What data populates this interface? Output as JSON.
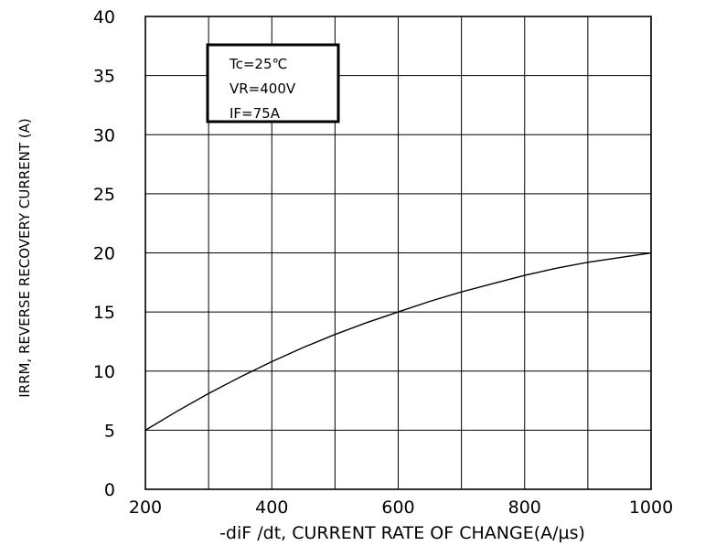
{
  "chart_data": {
    "type": "line",
    "xlabel": "-diF /dt, CURRENT RATE OF CHANGE(A/µs)",
    "ylabel": "IRRM, REVERSE RECOVERY CURRENT (A)",
    "xlim": [
      200,
      1000
    ],
    "ylim": [
      0,
      40
    ],
    "x_ticks": [
      "200",
      "400",
      "600",
      "800",
      "1000"
    ],
    "y_ticks": [
      "0",
      "5",
      "10",
      "15",
      "20",
      "25",
      "30",
      "35",
      "40"
    ],
    "grid": true,
    "series": [
      {
        "x": [
          200,
          250,
          300,
          350,
          400,
          450,
          500,
          550,
          600,
          650,
          700,
          750,
          800,
          850,
          900,
          950,
          1000
        ],
        "y": [
          5.0,
          6.6,
          8.1,
          9.5,
          10.8,
          12.0,
          13.1,
          14.1,
          15.0,
          15.9,
          16.7,
          17.4,
          18.1,
          18.7,
          19.2,
          19.6,
          20.0
        ]
      }
    ],
    "annotations": [
      "Tc=25℃",
      "VR=400V",
      "IF=75A"
    ]
  }
}
